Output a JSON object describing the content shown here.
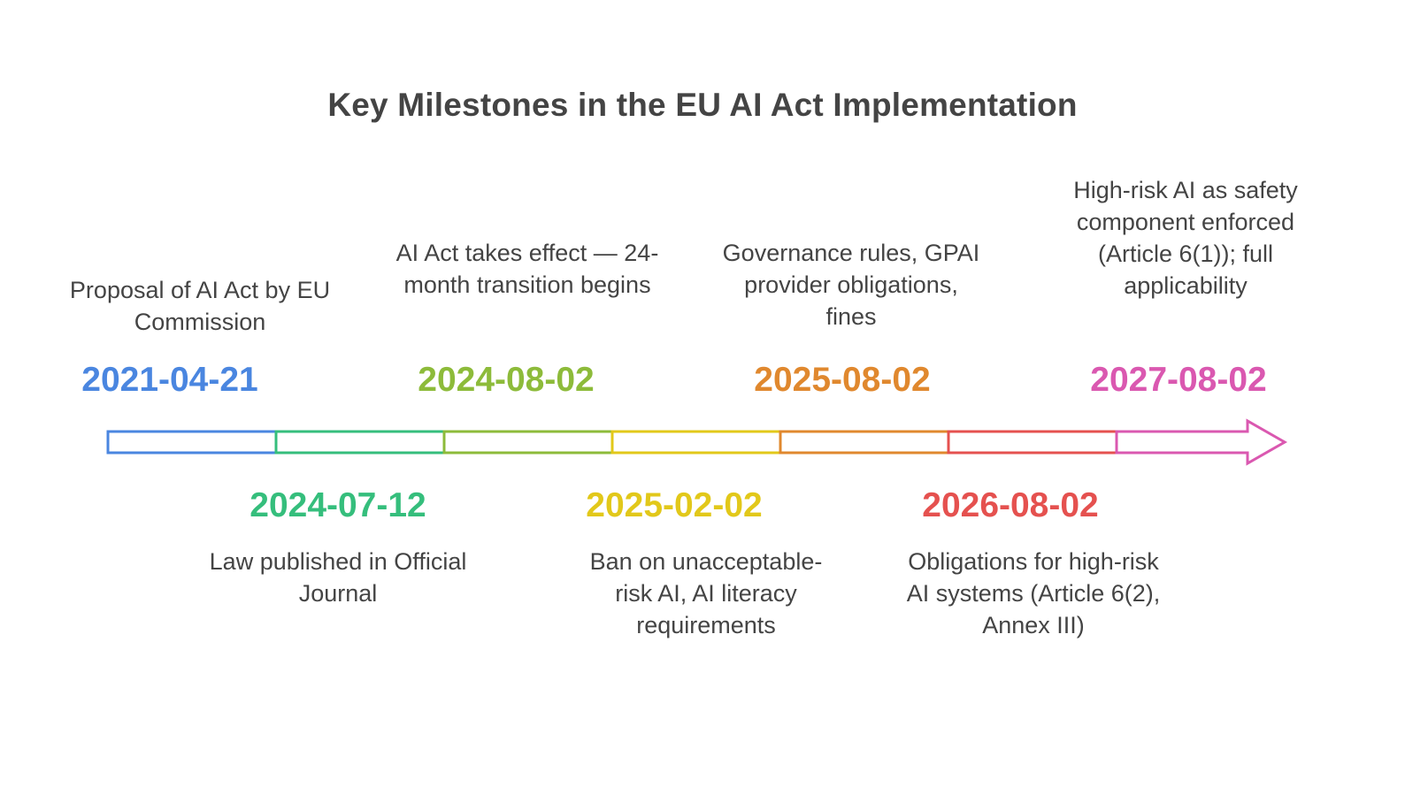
{
  "title": "Key Milestones in the EU AI Act Implementation",
  "milestones": [
    {
      "date": "2021-04-21",
      "description": "Proposal of AI Act by EU Commission",
      "color": "#4A86E0",
      "position": "above"
    },
    {
      "date": "2024-07-12",
      "description": "Law published in Official Journal",
      "color": "#35BE7C",
      "position": "below"
    },
    {
      "date": "2024-08-02",
      "description": "AI Act takes effect — 24-month transition begins",
      "color": "#8DBB3A",
      "position": "above"
    },
    {
      "date": "2025-02-02",
      "description": "Ban on unacceptable-risk AI, AI literacy requirements",
      "color": "#E2C81A",
      "position": "below"
    },
    {
      "date": "2025-08-02",
      "description": "Governance rules, GPAI provider obligations, fines",
      "color": "#E0882E",
      "position": "above"
    },
    {
      "date": "2026-08-02",
      "description": "Obligations for high-risk AI systems (Article 6(2), Annex III)",
      "color": "#E5514F",
      "position": "below"
    },
    {
      "date": "2027-08-02",
      "description": "High-risk AI as safety component enforced (Article 6(1)); full applicability",
      "color": "#DA58B0",
      "position": "above"
    }
  ]
}
